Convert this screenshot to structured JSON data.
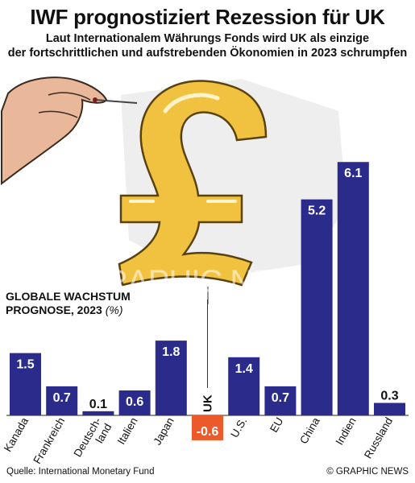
{
  "title": "IWF prognostiziert Rezession für UK",
  "subtitle_line1": "Laut  Internationalem Währungs Fonds wird UK als einzige",
  "subtitle_line2": "der fortschrittlichen und aufstrebenden Ökonomien in 2023 schrumpfen",
  "ylabel_line1": "GLOBALE WACHSTUM",
  "ylabel_line2": "PROGNOSE, 2023",
  "ylabel_unit": "(%)",
  "source": "Quelle: International Monetary Fund",
  "credit": "© GRAPHIC NEWS",
  "watermark": "GRAPHIC NEWS",
  "colors": {
    "bar": "#2b2b8c",
    "bar_negative": "#ec5a2b",
    "label_positive": "#ffffff",
    "label_negative": "#ffffff",
    "balloon": "#f1c240"
  },
  "chart_data": {
    "type": "bar",
    "title": "GLOBALE WACHSTUM PROGNOSE, 2023 (%)",
    "categories": [
      "Kanada",
      "Frankreich",
      "Deutsch-\nland",
      "Italien",
      "Japan",
      "UK",
      "U.S.",
      "EU",
      "China",
      "Indien",
      "Russland"
    ],
    "values": [
      1.5,
      0.7,
      0.1,
      0.6,
      1.8,
      -0.6,
      1.4,
      0.7,
      5.2,
      6.1,
      0.3
    ],
    "value_labels": [
      "1.5",
      "0.7",
      "0.1",
      "0.6",
      "1.8",
      "-0.6",
      "1.4",
      "0.7",
      "5.2",
      "6.1",
      "0.3"
    ],
    "highlight": "UK",
    "grid": false,
    "legend": "none"
  }
}
